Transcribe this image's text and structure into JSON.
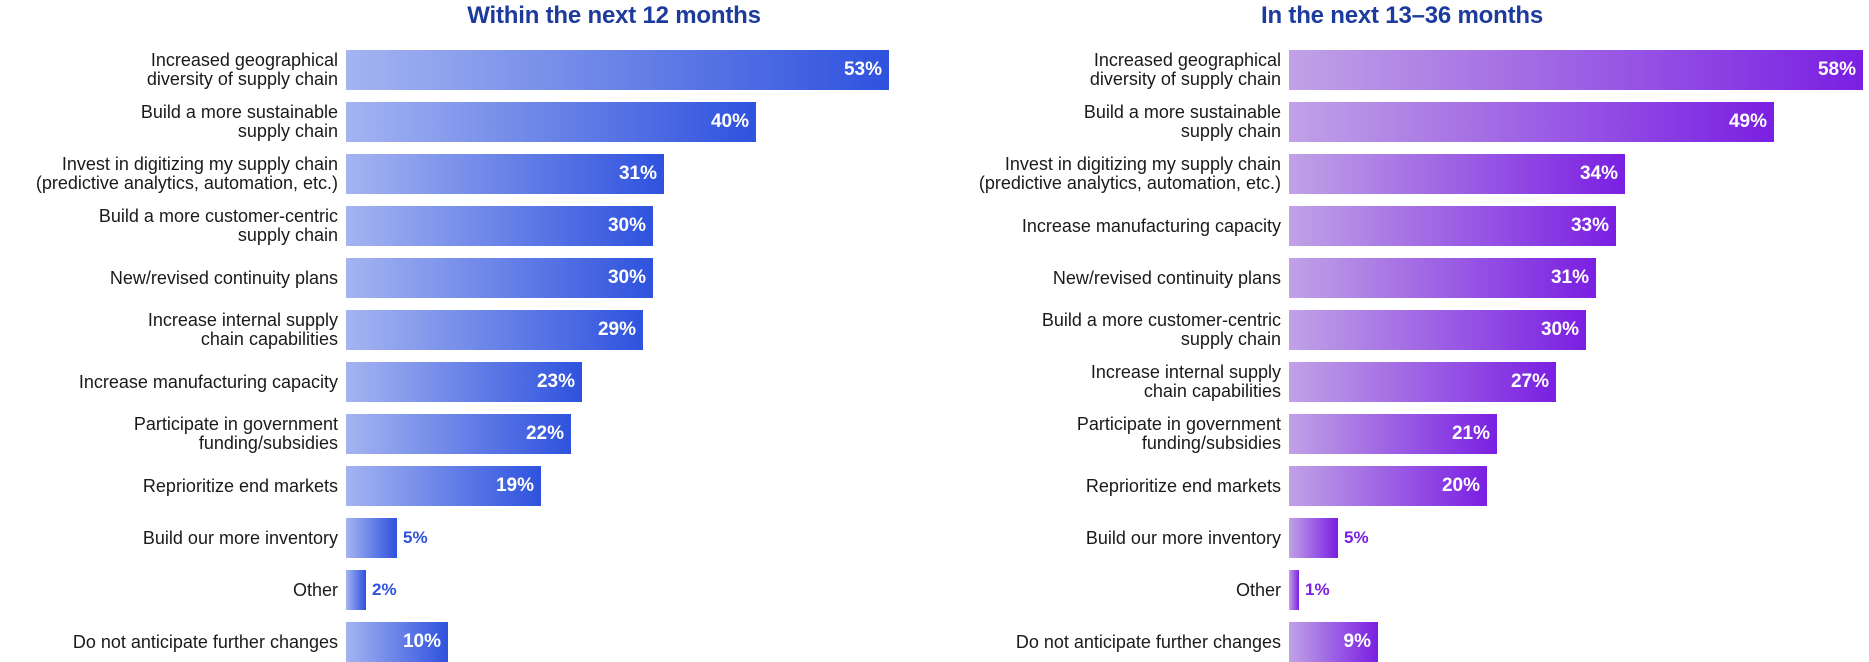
{
  "chart_data": [
    {
      "type": "bar",
      "orientation": "horizontal",
      "title": "Within the next 12 months",
      "value_suffix": "%",
      "xlim": [
        0,
        53
      ],
      "color_start": "#a4b4f1",
      "color_end": "#2f52de",
      "categories": [
        "Increased geographical\ndiversity of supply chain",
        "Build a more sustainable\nsupply chain",
        "Invest in digitizing my supply chain\n(predictive analytics, automation, etc.)",
        "Build a more customer-centric\nsupply chain",
        "New/revised continuity plans",
        "Increase internal supply\nchain capabilities",
        "Increase manufacturing capacity",
        "Participate in government\nfunding/subsidies",
        "Reprioritize end markets",
        "Build our more inventory",
        "Other",
        "Do not anticipate further changes"
      ],
      "values": [
        53,
        40,
        31,
        30,
        30,
        29,
        23,
        22,
        19,
        5,
        2,
        10
      ],
      "labels": [
        "53%",
        "40%",
        "31%",
        "30%",
        "30%",
        "29%",
        "23%",
        "22%",
        "19%",
        "5%",
        "2%",
        "10%"
      ]
    },
    {
      "type": "bar",
      "orientation": "horizontal",
      "title": "In the next 13–36 months",
      "value_suffix": "%",
      "xlim": [
        0,
        58
      ],
      "color_start": "#c0a2e6",
      "color_end": "#7a1fe2",
      "categories": [
        "Increased geographical\ndiversity of supply chain",
        "Build a more sustainable\nsupply chain",
        "Invest in digitizing my supply chain\n(predictive analytics, automation, etc.)",
        "Increase manufacturing capacity",
        "New/revised continuity plans",
        "Build a more customer-centric\nsupply chain",
        "Increase internal supply\nchain capabilities",
        "Participate in government\nfunding/subsidies",
        "Reprioritize end markets",
        "Build our more inventory",
        "Other",
        "Do not anticipate further changes"
      ],
      "values": [
        58,
        49,
        34,
        33,
        31,
        30,
        27,
        21,
        20,
        5,
        1,
        9
      ],
      "labels": [
        "58%",
        "49%",
        "34%",
        "33%",
        "31%",
        "30%",
        "27%",
        "21%",
        "20%",
        "5%",
        "1%",
        "9%"
      ]
    }
  ]
}
